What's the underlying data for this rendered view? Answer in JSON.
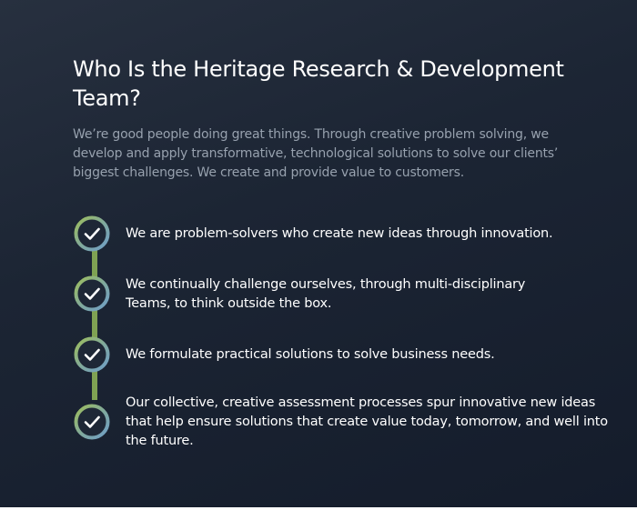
{
  "section": {
    "title": "Who Is the Heritage Research & Development Team?",
    "intro": "We’re good people doing great things. Through creative problem solving, we develop and apply transformative, technological solutions to solve our clients’ biggest challenges. We create and provide value to customers."
  },
  "items": [
    {
      "icon": "check-icon",
      "text": "We are problem-solvers who create new ideas through innovation."
    },
    {
      "icon": "check-icon",
      "text": "We continually challenge ourselves, through multi-disciplinary Teams, to think outside the box."
    },
    {
      "icon": "check-icon",
      "text": "We formulate practical solutions to solve business needs."
    },
    {
      "icon": "check-icon",
      "text": "Our collective, creative assessment processes spur innovative new ideas that help ensure solutions that create value today, tomorrow, and well into the future."
    }
  ],
  "colors": {
    "background_dark": "#141c2b",
    "ring_green": "#8fb45a",
    "ring_blue": "#6f9fc8",
    "connector_green": "#7fa253",
    "intro_gray": "#97a1ae"
  }
}
